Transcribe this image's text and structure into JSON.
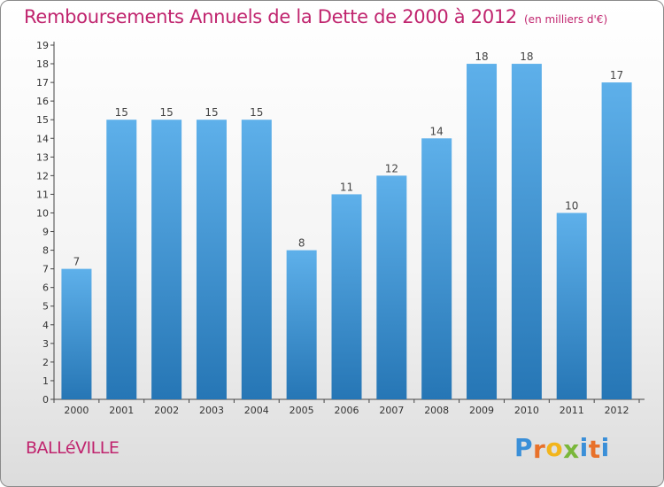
{
  "chart_data": {
    "type": "bar",
    "title": "Remboursements Annuels de la Dette de 2000 à 2012",
    "subtitle": "(en milliers d'€)",
    "categories": [
      "2000",
      "2001",
      "2002",
      "2003",
      "2004",
      "2005",
      "2006",
      "2007",
      "2008",
      "2009",
      "2010",
      "2011",
      "2012"
    ],
    "values": [
      7,
      15,
      15,
      15,
      15,
      8,
      11,
      12,
      14,
      18,
      18,
      10,
      17
    ],
    "ylim": [
      0,
      19
    ],
    "yticks": [
      0,
      1,
      2,
      3,
      4,
      5,
      6,
      7,
      8,
      9,
      10,
      11,
      12,
      13,
      14,
      15,
      16,
      17,
      18,
      19
    ],
    "xlabel": "",
    "ylabel": "",
    "grid": false,
    "bar_color_top": "#5eb0ea",
    "bar_color_bottom": "#2676b5",
    "title_color": "#c0246e"
  },
  "footer": {
    "place_name": "BALLéVILLE",
    "brand_letters": [
      "P",
      "r",
      "o",
      "x",
      "i",
      "t",
      "i"
    ],
    "brand_colors": [
      "#3a8fd8",
      "#e8712a",
      "#f2b51c",
      "#7ab73a",
      "#3a8fd8",
      "#e8712a",
      "#3a8fd8"
    ]
  }
}
